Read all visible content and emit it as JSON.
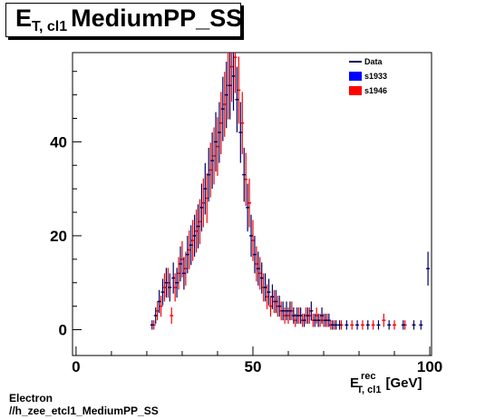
{
  "title": {
    "main": "E",
    "sub": "T, cl1",
    "rest": "MediumPP_SS"
  },
  "footer": {
    "line1": "Electron",
    "line2": "//h_zee_etcl1_MediumPP_SS"
  },
  "colors": {
    "data": "#000066",
    "s1933": "#0000ff",
    "s1946": "#ff0000"
  },
  "chart_data": {
    "type": "scatter",
    "xlabel": {
      "main": "E",
      "sup": "rec",
      "sub": "T, cl1",
      "unit": "[GeV]"
    },
    "xlim": [
      -1,
      100.5
    ],
    "ylim": [
      -5.5,
      59
    ],
    "xticks": [
      0,
      50,
      100
    ],
    "yticks": [
      0,
      20,
      40
    ],
    "legend": {
      "position": "top-right",
      "entries": [
        "Data",
        "s1933",
        "s1946"
      ]
    },
    "series": [
      {
        "name": "Data",
        "x": [
          21.5,
          22.5,
          23.5,
          24.5,
          25.5,
          26.5,
          27.5,
          28.5,
          29.5,
          30.5,
          31.5,
          32.5,
          33.5,
          34.5,
          35.5,
          36.5,
          37.5,
          38.5,
          39.5,
          40.5,
          41.5,
          42.5,
          43.5,
          44.5,
          45.5,
          46.5,
          47.5,
          48.5,
          49.5,
          50.5,
          51.5,
          52.5,
          53.5,
          54.5,
          55.5,
          56.5,
          57.5,
          58.5,
          59.5,
          60.5,
          61.5,
          62.5,
          63.5,
          64.5,
          65.5,
          66.5,
          67.5,
          68.5,
          69.5,
          70.5,
          71.5,
          72.5,
          73.5,
          74.5,
          76.5,
          79.5,
          82.5,
          85.5,
          88.5,
          92.5,
          95.5,
          97.5,
          99.5
        ],
        "y": [
          1,
          3,
          6,
          8,
          10,
          9,
          11,
          10,
          14,
          12,
          16,
          18,
          20,
          22,
          26,
          30,
          33,
          36,
          40,
          42,
          47,
          50,
          52,
          54,
          49,
          42,
          33,
          26,
          20,
          16,
          13,
          11,
          9,
          8,
          7,
          6,
          5,
          4,
          4,
          4,
          3,
          3,
          3,
          2,
          3,
          4,
          2,
          2,
          3,
          2,
          2,
          1,
          1,
          1,
          1,
          1,
          1,
          1,
          1,
          1,
          1,
          1,
          13
        ]
      },
      {
        "name": "s1946",
        "x": [
          22,
          23,
          24,
          25,
          26,
          27,
          28,
          29,
          30,
          31,
          32,
          33,
          34,
          35,
          36,
          37,
          38,
          39,
          40,
          41,
          42,
          43,
          44,
          45,
          46,
          47,
          48,
          49,
          50,
          51,
          52,
          53,
          54,
          55,
          56,
          57,
          58,
          59,
          60,
          61,
          62,
          63,
          64,
          65,
          66,
          67,
          68,
          69,
          70,
          71,
          72,
          73,
          75,
          78,
          81,
          84,
          87,
          90,
          93
        ],
        "y": [
          1,
          4,
          5,
          9,
          10,
          3,
          9,
          12,
          15,
          13,
          17,
          19,
          21,
          23,
          27,
          28,
          34,
          37,
          39,
          44,
          48,
          52,
          56,
          58,
          51,
          44,
          32,
          27,
          19,
          14,
          12,
          9,
          7,
          5,
          6,
          5,
          4,
          3,
          3,
          4,
          2,
          3,
          2,
          3,
          3,
          2,
          3,
          2,
          2,
          2,
          1,
          1,
          1,
          1,
          1,
          1,
          2,
          1,
          1
        ]
      }
    ]
  }
}
